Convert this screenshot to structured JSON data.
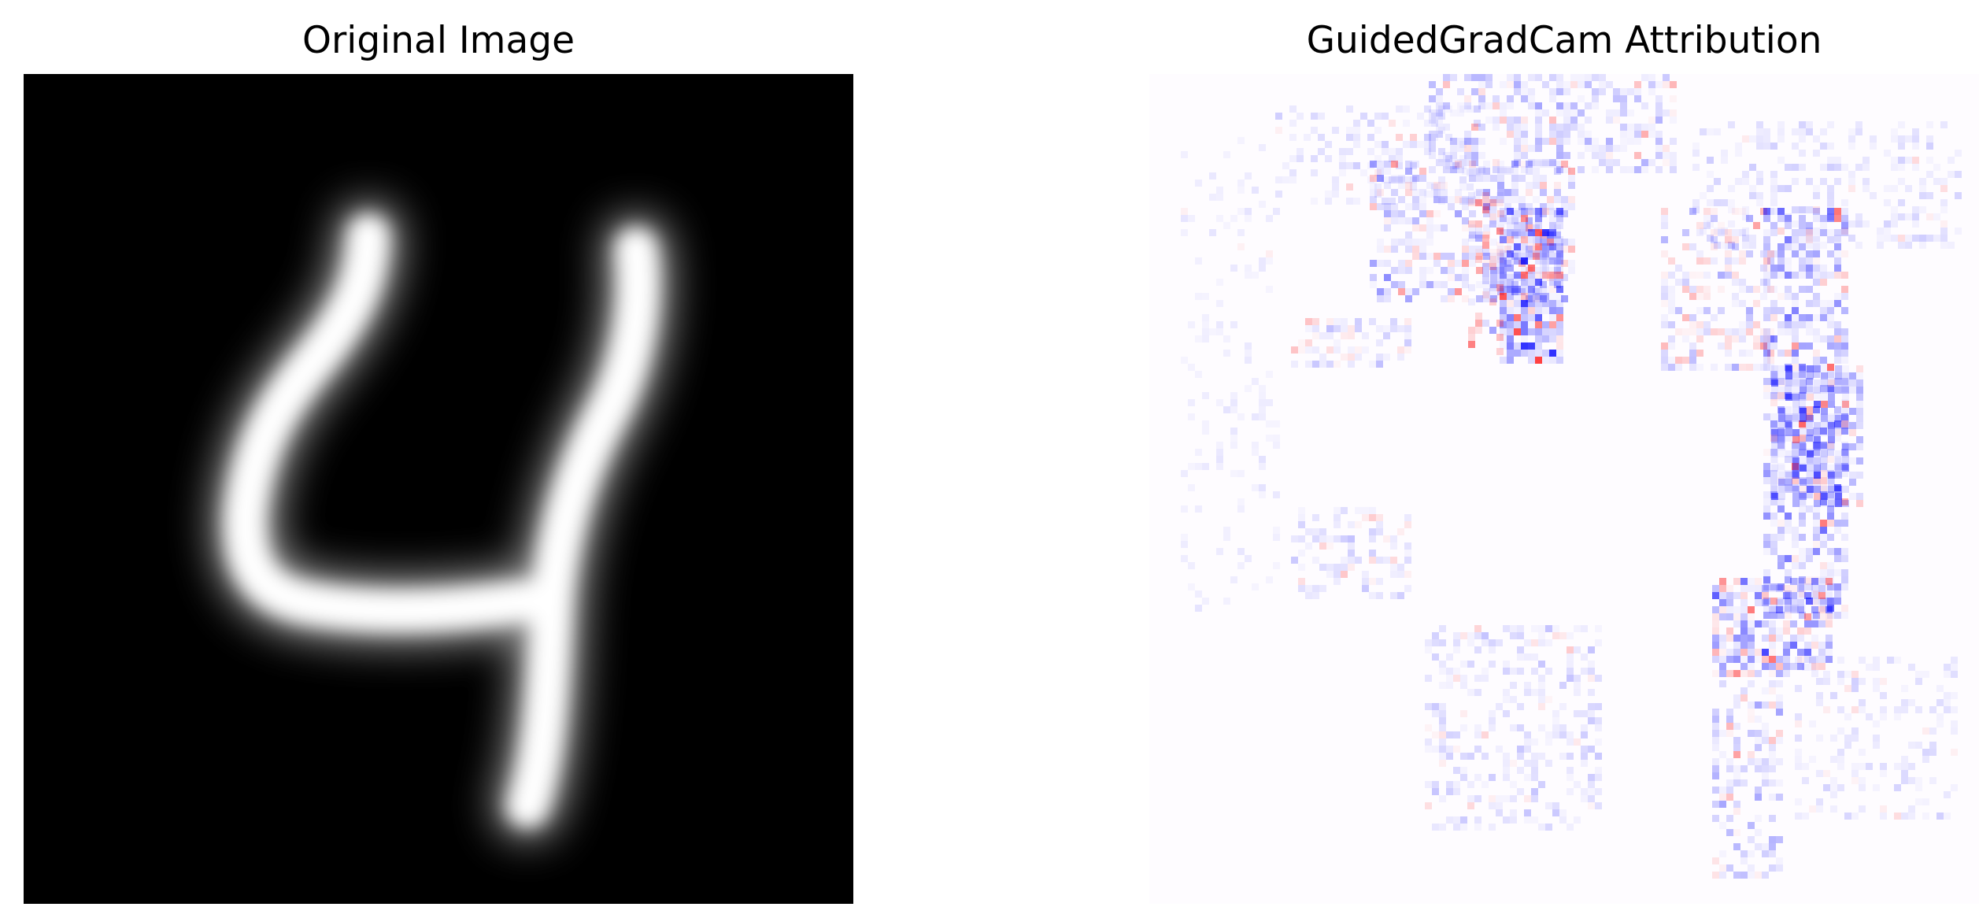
{
  "panels": [
    {
      "title": "Original Image",
      "image": "grayscale handwritten digit on black background",
      "colormap": "gray"
    },
    {
      "title": "GuidedGradCam Attribution",
      "image": "attribution heatmap",
      "colormap": "bwr"
    }
  ],
  "colors": {
    "background": "#ffffff",
    "digit_bg": "#000000",
    "digit_stroke": "#ffffff",
    "positive": "#0000ff",
    "negative": "#ff0000"
  }
}
